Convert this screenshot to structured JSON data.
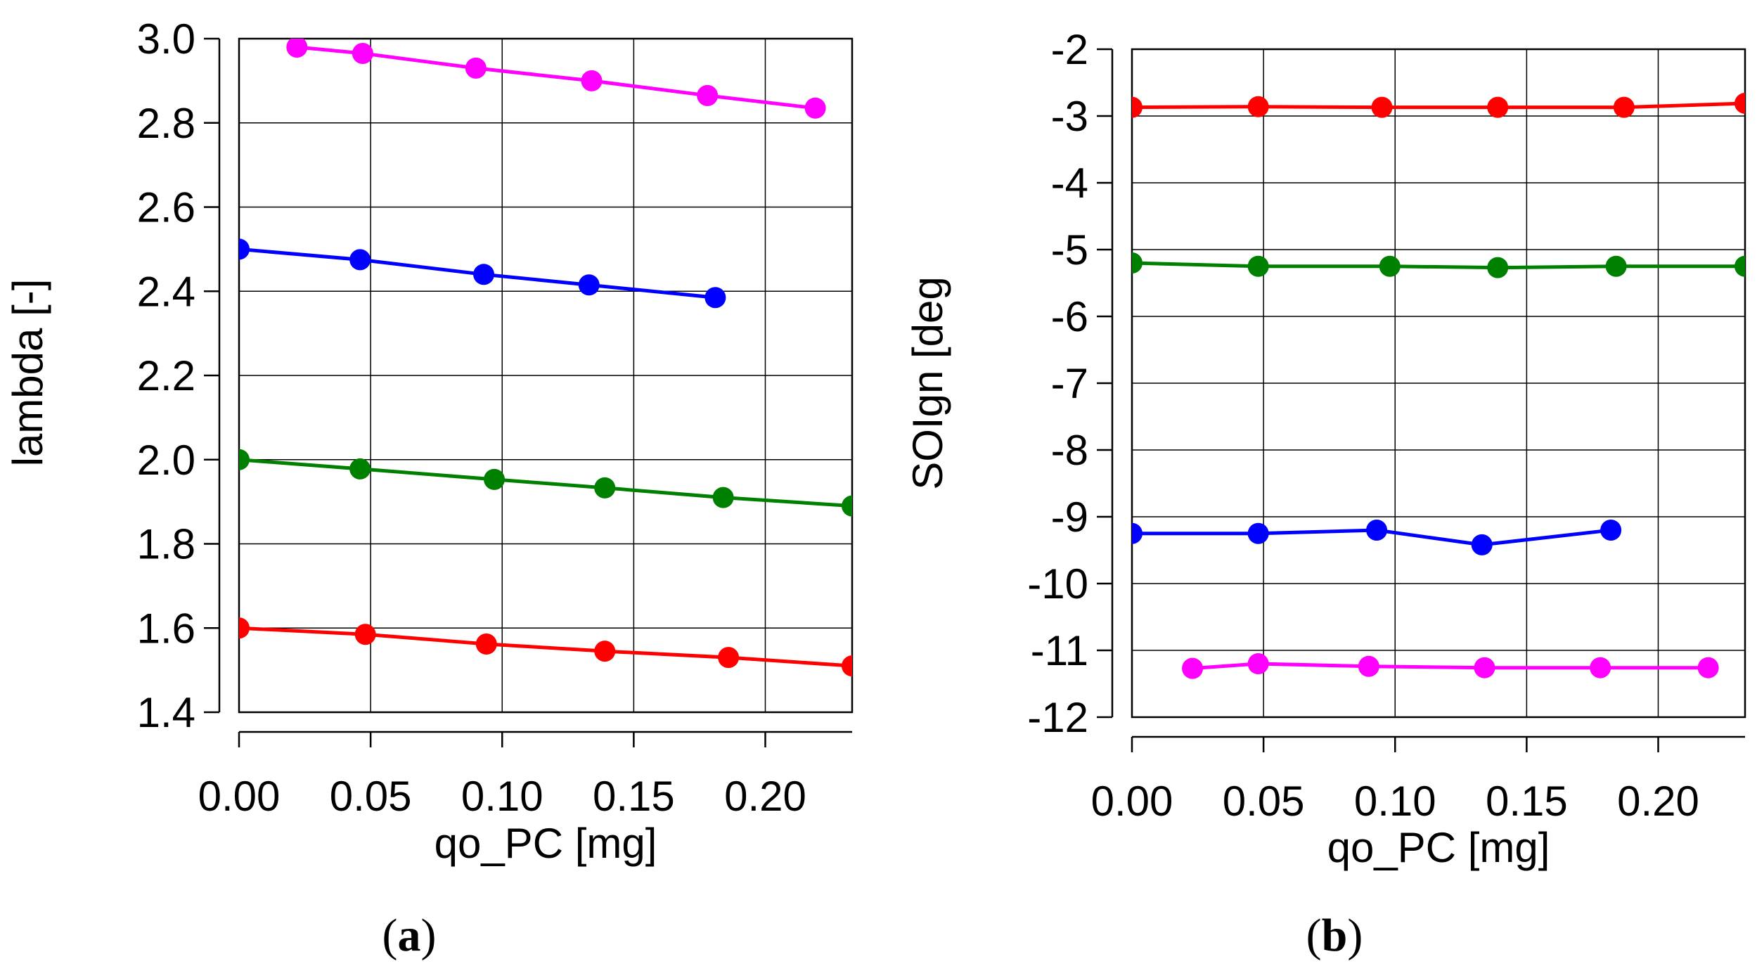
{
  "chart_data": [
    {
      "type": "line",
      "panel_label": "a",
      "xlabel": "qo_PC [mg]",
      "ylabel": "lambda [-]",
      "xlim": [
        0,
        0.233
      ],
      "ylim": [
        1.4,
        3.0
      ],
      "x_ticks": [
        0.0,
        0.05,
        0.1,
        0.15,
        0.2
      ],
      "x_tick_labels": [
        "0.00",
        "0.05",
        "0.10",
        "0.15",
        "0.20"
      ],
      "y_ticks": [
        1.4,
        1.6,
        1.8,
        2.0,
        2.2,
        2.4,
        2.6,
        2.8,
        3.0
      ],
      "y_tick_labels": [
        "1.4",
        "1.6",
        "1.8",
        "2.0",
        "2.2",
        "2.4",
        "2.6",
        "2.8",
        "3.0"
      ],
      "grid": true,
      "series": [
        {
          "name": "magenta",
          "color": "#ff00ff",
          "x": [
            0.022,
            0.047,
            0.09,
            0.134,
            0.178,
            0.219
          ],
          "y": [
            2.98,
            2.965,
            2.93,
            2.9,
            2.865,
            2.835
          ]
        },
        {
          "name": "blue",
          "color": "#0000ff",
          "x": [
            0.0,
            0.046,
            0.093,
            0.133,
            0.181
          ],
          "y": [
            2.5,
            2.475,
            2.44,
            2.415,
            2.385
          ]
        },
        {
          "name": "green",
          "color": "#008000",
          "x": [
            0.0,
            0.046,
            0.097,
            0.139,
            0.184,
            0.233
          ],
          "y": [
            2.0,
            1.978,
            1.953,
            1.933,
            1.91,
            1.89
          ]
        },
        {
          "name": "red",
          "color": "#ff0000",
          "x": [
            0.0,
            0.048,
            0.094,
            0.139,
            0.186,
            0.233
          ],
          "y": [
            1.6,
            1.585,
            1.562,
            1.545,
            1.53,
            1.51
          ]
        }
      ]
    },
    {
      "type": "line",
      "panel_label": "b",
      "xlabel": "qo_PC [mg]",
      "ylabel": "SOIgn [deg",
      "xlim": [
        0,
        0.233
      ],
      "ylim": [
        -12,
        -2
      ],
      "x_ticks": [
        0.0,
        0.05,
        0.1,
        0.15,
        0.2
      ],
      "x_tick_labels": [
        "0.00",
        "0.05",
        "0.10",
        "0.15",
        "0.20"
      ],
      "y_ticks": [
        -12,
        -11,
        -10,
        -9,
        -8,
        -7,
        -6,
        -5,
        -4,
        -3,
        -2
      ],
      "y_tick_labels": [
        "-12",
        "-11",
        "-10",
        "-9",
        "-8",
        "-7",
        "-6",
        "-5",
        "-4",
        "-3",
        "-2"
      ],
      "grid": true,
      "series": [
        {
          "name": "red",
          "color": "#ff0000",
          "x": [
            0.0,
            0.048,
            0.095,
            0.139,
            0.187,
            0.233
          ],
          "y": [
            -2.87,
            -2.86,
            -2.87,
            -2.87,
            -2.87,
            -2.81
          ]
        },
        {
          "name": "green",
          "color": "#008000",
          "x": [
            0.0,
            0.048,
            0.098,
            0.139,
            0.184,
            0.233
          ],
          "y": [
            -5.2,
            -5.25,
            -5.25,
            -5.27,
            -5.25,
            -5.25
          ]
        },
        {
          "name": "blue",
          "color": "#0000ff",
          "x": [
            0.0,
            0.048,
            0.093,
            0.133,
            0.182
          ],
          "y": [
            -9.25,
            -9.25,
            -9.2,
            -9.42,
            -9.2
          ]
        },
        {
          "name": "magenta",
          "color": "#ff00ff",
          "x": [
            0.023,
            0.048,
            0.09,
            0.134,
            0.178,
            0.219
          ],
          "y": [
            -11.27,
            -11.2,
            -11.24,
            -11.26,
            -11.26,
            -11.26
          ]
        }
      ]
    }
  ]
}
